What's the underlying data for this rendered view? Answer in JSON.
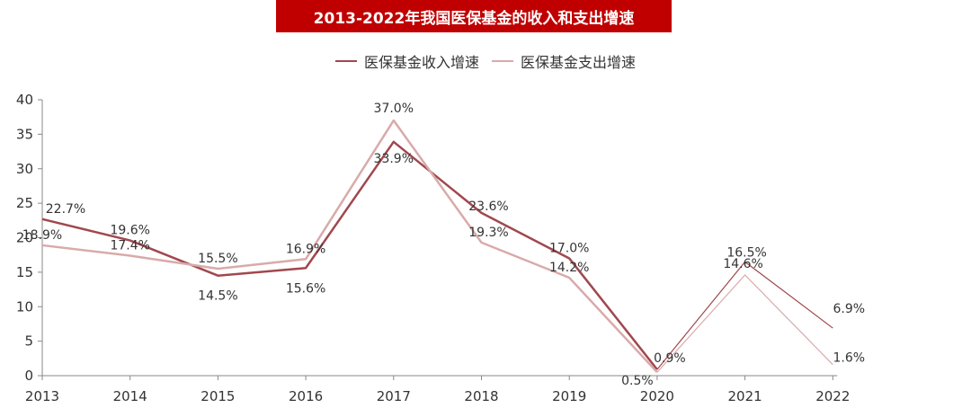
{
  "chart_data": {
    "type": "line",
    "title": "2013-2022年我国医保基金的收入和支出增速",
    "xlabel": "",
    "ylabel": "",
    "ylim": [
      0,
      40
    ],
    "yticks": [
      0,
      5,
      10,
      15,
      20,
      25,
      30,
      35,
      40
    ],
    "grid": false,
    "legend_position": "top-center",
    "categories": [
      "2013",
      "2014",
      "2015",
      "2016",
      "2017",
      "2018",
      "2019",
      "2020",
      "2021",
      "2022"
    ],
    "series": [
      {
        "name": "医保基金收入增速",
        "color": "#a0484e",
        "values": [
          22.7,
          19.6,
          14.5,
          15.6,
          33.9,
          23.6,
          17.0,
          0.9,
          16.5,
          6.9
        ],
        "labels": [
          "22.7%",
          "19.6%",
          "14.5%",
          "15.6%",
          "33.9%",
          "23.6%",
          "17.0%",
          "0.9%",
          "16.5%",
          "6.9%"
        ]
      },
      {
        "name": "医保基金支出增速",
        "color": "#d9aaaa",
        "values": [
          18.9,
          17.4,
          15.5,
          16.9,
          37.0,
          19.3,
          14.2,
          0.5,
          14.6,
          1.6
        ],
        "labels": [
          "18.9%",
          "17.4%",
          "15.5%",
          "16.9%",
          "37.0%",
          "19.3%",
          "14.2%",
          "0.5%",
          "14.6%",
          "1.6%"
        ]
      }
    ]
  }
}
